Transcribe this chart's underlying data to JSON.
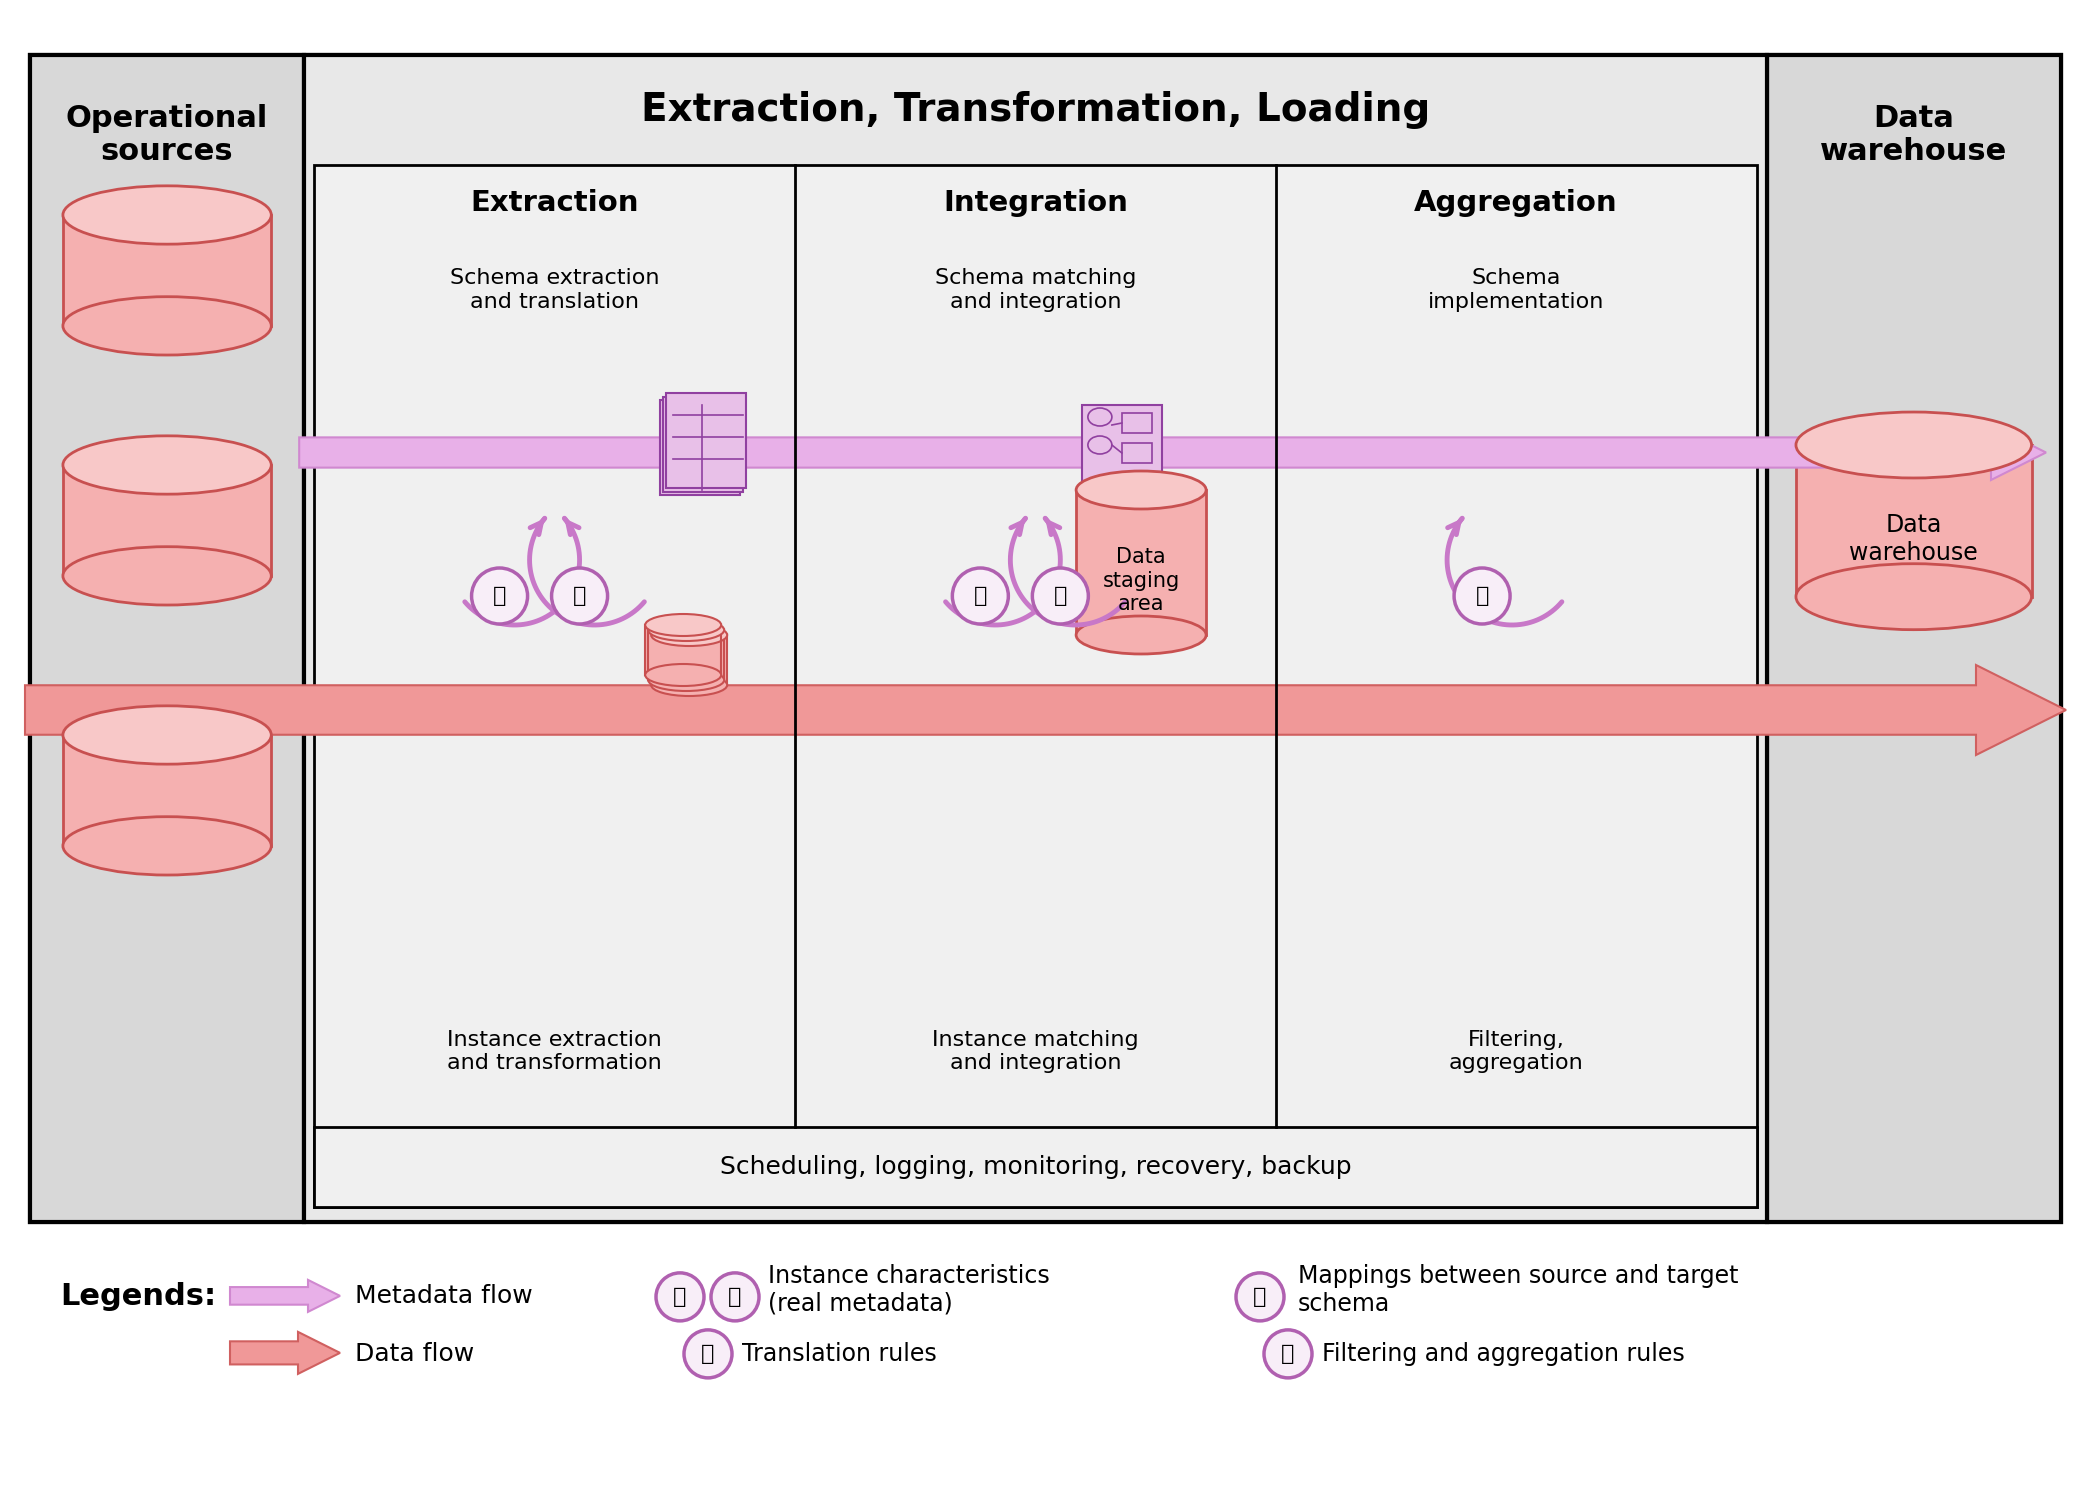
{
  "bg_color": "#ffffff",
  "gray_outer": "#d8d8d8",
  "gray_inner": "#e8e8e8",
  "gray_sub": "#f0f0f0",
  "salmon_fill": "#f09090",
  "salmon_dark": "#c85050",
  "salmon_light": "#f5b0b0",
  "pink_meta": "#e8b0e8",
  "pink_meta_ec": "#d088d0",
  "pink_data": "#f09898",
  "pink_data_ec": "#d06060",
  "purple_icon": "#c888c8",
  "purple_icon_fill": "#e8c0e8",
  "purple_icon_dark": "#9040a0",
  "purple_circ_fill": "#f8eef8",
  "purple_circ_ec": "#b060b0",
  "white": "#ffffff",
  "black": "#000000",
  "title_etl": "Extraction, Transformation, Loading",
  "title_op": "Operational\nsources",
  "title_dw": "Data\nwarehouse",
  "title_extraction": "Extraction",
  "title_integration": "Integration",
  "title_aggregation": "Aggregation",
  "text_schema_extraction": "Schema extraction\nand translation",
  "text_schema_matching": "Schema matching\nand integration",
  "text_schema_impl": "Schema\nimplementation",
  "text_instance_extraction": "Instance extraction\nand transformation",
  "text_instance_matching": "Instance matching\nand integration",
  "text_filtering": "Filtering,\naggregation",
  "text_scheduling": "Scheduling, logging, monitoring, recovery, backup",
  "text_data_staging": "Data\nstaging\narea",
  "text_data_warehouse": "Data\nwarehouse",
  "legend_metadata": "Metadata flow",
  "legend_data": "Data flow",
  "legend_13": "Instance characteristics\n(real metadata)",
  "legend_2": "Translation rules",
  "legend_4": "Mappings between source and target\nschema",
  "legend_5": "Filtering and aggregation rules",
  "fig_w": 20.91,
  "fig_h": 14.96,
  "dpi": 100
}
